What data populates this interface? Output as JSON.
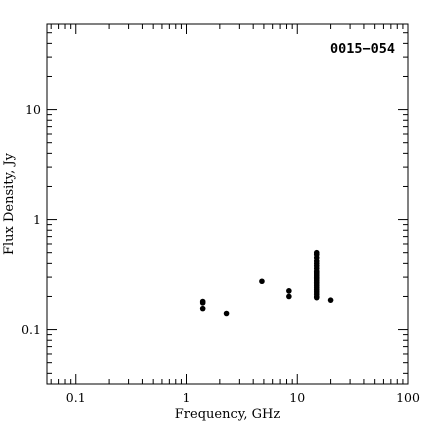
{
  "chart_data": {
    "type": "scatter",
    "title": "",
    "annotation": "0015−054",
    "xlabel": "Frequency, GHz",
    "ylabel": "Flux Density, Jy",
    "xscale": "log",
    "yscale": "log",
    "xlim": [
      0.055,
      100
    ],
    "ylim": [
      0.032,
      60
    ],
    "grid": false,
    "legend": "none",
    "marker_color": "#000000",
    "x_ticks": [
      0.1,
      1,
      10,
      100
    ],
    "x_tick_labels": [
      "0.1",
      "1",
      "10",
      "100"
    ],
    "y_ticks": [
      0.1,
      1,
      10
    ],
    "y_tick_labels": [
      "0.1",
      "1",
      "10"
    ],
    "points": [
      {
        "x": 1.4,
        "y": 0.18
      },
      {
        "x": 1.4,
        "y": 0.175
      },
      {
        "x": 1.4,
        "y": 0.155
      },
      {
        "x": 2.3,
        "y": 0.14
      },
      {
        "x": 4.8,
        "y": 0.275
      },
      {
        "x": 8.4,
        "y": 0.225
      },
      {
        "x": 8.4,
        "y": 0.2
      },
      {
        "x": 15,
        "y": 0.5
      },
      {
        "x": 15,
        "y": 0.48
      },
      {
        "x": 15,
        "y": 0.45
      },
      {
        "x": 15,
        "y": 0.42
      },
      {
        "x": 15,
        "y": 0.4
      },
      {
        "x": 15,
        "y": 0.38
      },
      {
        "x": 15,
        "y": 0.36
      },
      {
        "x": 15,
        "y": 0.34
      },
      {
        "x": 15,
        "y": 0.33
      },
      {
        "x": 15,
        "y": 0.32
      },
      {
        "x": 15,
        "y": 0.31
      },
      {
        "x": 15,
        "y": 0.3
      },
      {
        "x": 15,
        "y": 0.29
      },
      {
        "x": 15,
        "y": 0.28
      },
      {
        "x": 15,
        "y": 0.27
      },
      {
        "x": 15,
        "y": 0.26
      },
      {
        "x": 15,
        "y": 0.25
      },
      {
        "x": 15,
        "y": 0.24
      },
      {
        "x": 15,
        "y": 0.23
      },
      {
        "x": 15,
        "y": 0.22
      },
      {
        "x": 15,
        "y": 0.21
      },
      {
        "x": 15,
        "y": 0.2
      },
      {
        "x": 15,
        "y": 0.195
      },
      {
        "x": 20,
        "y": 0.185
      }
    ]
  }
}
